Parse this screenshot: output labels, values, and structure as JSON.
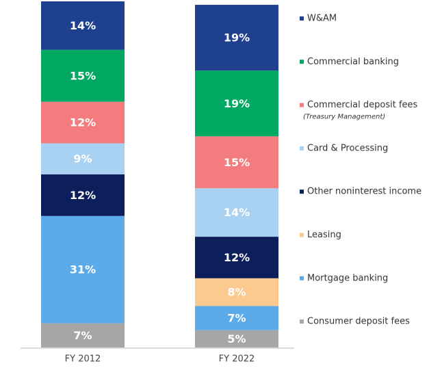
{
  "chart_data": {
    "type": "stacked_bar",
    "categories": [
      "FY 2012",
      "FY 2022"
    ],
    "ylim": [
      0,
      100
    ],
    "series": [
      {
        "name": "W&AM",
        "color": "#1f3f8f",
        "values": [
          14,
          19
        ],
        "value_labels": [
          "14%",
          "19%"
        ]
      },
      {
        "name": "Commercial banking",
        "color": "#00a862",
        "values": [
          15,
          19
        ],
        "value_labels": [
          "15%",
          "19%"
        ]
      },
      {
        "name": "Commercial deposit fees",
        "subtitle": "(Treasury Management)",
        "color": "#f47c7e",
        "values": [
          12,
          15
        ],
        "value_labels": [
          "12%",
          "15%"
        ]
      },
      {
        "name": "Card & Processing",
        "color": "#a9d1f2",
        "values": [
          9,
          14
        ],
        "value_labels": [
          "9%",
          "14%"
        ]
      },
      {
        "name": "Other noninterest income",
        "color": "#0c1f5b",
        "values": [
          12,
          12
        ],
        "value_labels": [
          "12%",
          "12%"
        ]
      },
      {
        "name": "Leasing",
        "color": "#fcc990",
        "values": [
          null,
          8
        ],
        "value_labels": [
          null,
          "8%"
        ]
      },
      {
        "name": "Mortgage banking",
        "color": "#5caae8",
        "values": [
          31,
          7
        ],
        "value_labels": [
          "31%",
          "7%"
        ]
      },
      {
        "name": "Consumer deposit fees",
        "color": "#a6a6a6",
        "values": [
          7,
          5
        ],
        "value_labels": [
          "7%",
          "5%"
        ]
      }
    ]
  }
}
